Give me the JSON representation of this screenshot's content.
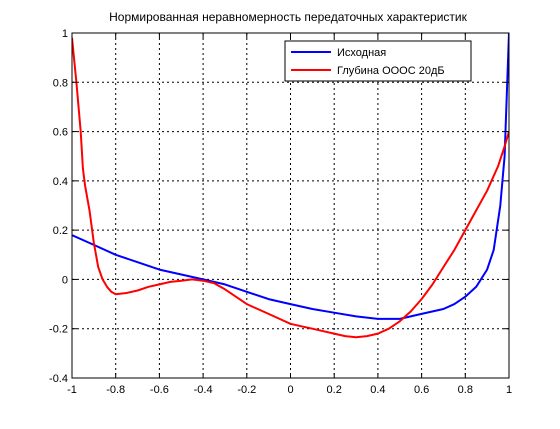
{
  "chart_data": {
    "type": "line",
    "title": "Нормированная неравномерность передаточных характеристик",
    "xlabel": "",
    "ylabel": "",
    "xlim": [
      -1,
      1
    ],
    "ylim": [
      -0.4,
      1
    ],
    "x_ticks": [
      -1,
      -0.8,
      -0.6,
      -0.4,
      -0.2,
      0,
      0.2,
      0.4,
      0.6,
      0.8,
      1
    ],
    "x_tick_labels": [
      "-1",
      "-0.8",
      "-0.6",
      "-0.4",
      "-0.2",
      "0",
      "0.2",
      "0.4",
      "0.6",
      "0.8",
      "1"
    ],
    "y_ticks": [
      -0.4,
      -0.2,
      0,
      0.2,
      0.4,
      0.6,
      0.8,
      1
    ],
    "y_tick_labels": [
      "-0.4",
      "-0.2",
      "0",
      "0.2",
      "0.4",
      "0.6",
      "0.8",
      "1"
    ],
    "grid": true,
    "grid_style": "dotted",
    "legend_position": "top-right",
    "series": [
      {
        "name": "Исходная",
        "color": "#0000ff",
        "x": [
          -1,
          -0.9,
          -0.8,
          -0.7,
          -0.6,
          -0.5,
          -0.4,
          -0.3,
          -0.2,
          -0.1,
          0,
          0.1,
          0.2,
          0.3,
          0.4,
          0.5,
          0.6,
          0.7,
          0.75,
          0.8,
          0.85,
          0.9,
          0.93,
          0.96,
          0.98,
          1.0
        ],
        "values": [
          0.18,
          0.14,
          0.1,
          0.07,
          0.04,
          0.02,
          0.0,
          -0.02,
          -0.05,
          -0.08,
          -0.1,
          -0.12,
          -0.135,
          -0.15,
          -0.16,
          -0.16,
          -0.14,
          -0.12,
          -0.1,
          -0.07,
          -0.03,
          0.04,
          0.12,
          0.3,
          0.5,
          1.0
        ]
      },
      {
        "name": "Глубина ОООС 20дБ",
        "color": "#ff0000",
        "x": [
          -1,
          -0.98,
          -0.96,
          -0.95,
          -0.94,
          -0.92,
          -0.9,
          -0.88,
          -0.86,
          -0.84,
          -0.82,
          -0.8,
          -0.75,
          -0.7,
          -0.65,
          -0.6,
          -0.55,
          -0.5,
          -0.45,
          -0.4,
          -0.35,
          -0.3,
          -0.25,
          -0.2,
          -0.15,
          -0.1,
          -0.05,
          0,
          0.05,
          0.1,
          0.15,
          0.2,
          0.25,
          0.3,
          0.35,
          0.4,
          0.45,
          0.5,
          0.55,
          0.6,
          0.65,
          0.7,
          0.75,
          0.8,
          0.85,
          0.9,
          0.95,
          0.98,
          1.0
        ],
        "values": [
          0.98,
          0.8,
          0.6,
          0.45,
          0.38,
          0.28,
          0.15,
          0.05,
          0.0,
          -0.03,
          -0.05,
          -0.06,
          -0.055,
          -0.045,
          -0.03,
          -0.02,
          -0.01,
          -0.005,
          0.0,
          -0.005,
          -0.015,
          -0.04,
          -0.07,
          -0.1,
          -0.12,
          -0.14,
          -0.16,
          -0.18,
          -0.19,
          -0.2,
          -0.21,
          -0.22,
          -0.23,
          -0.235,
          -0.23,
          -0.22,
          -0.2,
          -0.17,
          -0.13,
          -0.08,
          -0.02,
          0.05,
          0.12,
          0.2,
          0.28,
          0.36,
          0.46,
          0.54,
          0.6
        ]
      }
    ]
  }
}
